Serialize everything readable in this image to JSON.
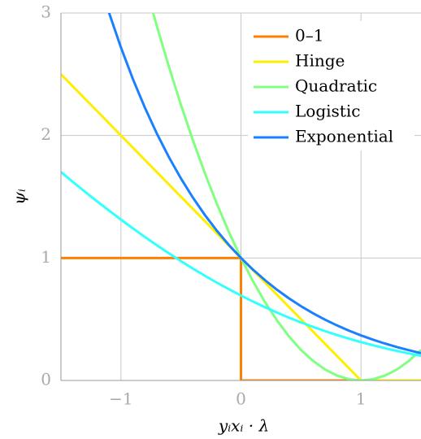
{
  "chart_data": {
    "type": "line",
    "xlabel": "yᵢxᵢ · λ",
    "ylabel": "ψᵢ",
    "xlim": [
      -1.5,
      1.5
    ],
    "ylim": [
      0,
      3
    ],
    "xticks": [
      {
        "value": -1,
        "label": "−1"
      },
      0,
      1
    ],
    "yticks": [
      0,
      1,
      2,
      3
    ],
    "grid": true,
    "legend": "upper right",
    "series": [
      {
        "name": "0–1",
        "color": "#ff8000",
        "x": [
          -1.5,
          0,
          0,
          1.5
        ],
        "values": [
          1,
          1,
          0,
          0
        ]
      },
      {
        "name": "Hinge",
        "color": "#ffee00",
        "x": [
          -1.5,
          1,
          1.5
        ],
        "values": [
          2.5,
          0,
          0
        ]
      },
      {
        "name": "Quadratic",
        "color": "#80ff80",
        "x": [
          -0.8,
          -0.7,
          -0.6,
          -0.5,
          -0.4,
          -0.3,
          -0.2,
          -0.1,
          0,
          0.1,
          0.2,
          0.3,
          0.4,
          0.5,
          0.6,
          0.7,
          0.8,
          0.9,
          1,
          1.1,
          1.2,
          1.3,
          1.4,
          1.5
        ],
        "values": [
          3.24,
          2.89,
          2.56,
          2.25,
          1.96,
          1.69,
          1.44,
          1.21,
          1,
          0.81,
          0.64,
          0.49,
          0.36,
          0.25,
          0.16,
          0.09,
          0.04,
          0.01,
          0,
          0.01,
          0.04,
          0.09,
          0.16,
          0.25
        ]
      },
      {
        "name": "Logistic",
        "color": "#33ffff",
        "x": [
          -1.5,
          -1.4,
          -1.3,
          -1.2,
          -1.1,
          -1,
          -0.9,
          -0.8,
          -0.7,
          -0.6,
          -0.5,
          -0.4,
          -0.3,
          -0.2,
          -0.1,
          0,
          0.1,
          0.2,
          0.3,
          0.4,
          0.5,
          0.6,
          0.7,
          0.8,
          0.9,
          1,
          1.1,
          1.2,
          1.3,
          1.4,
          1.5
        ],
        "values": [
          1.7014,
          1.6204,
          1.541,
          1.4633,
          1.3873,
          1.3133,
          1.2412,
          1.1711,
          1.1032,
          1.0375,
          0.9741,
          0.913,
          0.8544,
          0.7981,
          0.7444,
          0.6931,
          0.6444,
          0.5981,
          0.5544,
          0.513,
          0.4741,
          0.4375,
          0.4032,
          0.3711,
          0.3412,
          0.3133,
          0.2873,
          0.2633,
          0.241,
          0.2204,
          0.2014
        ]
      },
      {
        "name": "Exponential",
        "color": "#1a80ff",
        "x": [
          -1.1,
          -1,
          -0.9,
          -0.8,
          -0.7,
          -0.6,
          -0.5,
          -0.4,
          -0.3,
          -0.2,
          -0.1,
          0,
          0.1,
          0.2,
          0.3,
          0.4,
          0.5,
          0.6,
          0.7,
          0.8,
          0.9,
          1,
          1.1,
          1.2,
          1.3,
          1.4,
          1.5
        ],
        "values": [
          3.0042,
          2.7183,
          2.4596,
          2.2255,
          2.0138,
          1.8221,
          1.6487,
          1.4918,
          1.3499,
          1.2214,
          1.1052,
          1,
          0.9048,
          0.8187,
          0.7408,
          0.6703,
          0.6065,
          0.5488,
          0.4966,
          0.4493,
          0.4066,
          0.3679,
          0.3329,
          0.3012,
          0.2725,
          0.2466,
          0.2231
        ]
      }
    ]
  }
}
